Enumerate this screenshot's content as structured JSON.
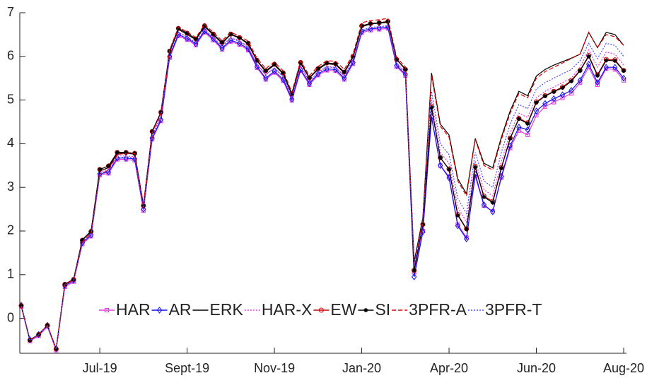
{
  "chart_data": {
    "type": "line",
    "categories": [
      null,
      null,
      null,
      null,
      null,
      null,
      null,
      null,
      null,
      "Jul-19",
      null,
      null,
      null,
      null,
      null,
      null,
      null,
      null,
      null,
      "Sept-19",
      null,
      null,
      null,
      null,
      null,
      null,
      null,
      null,
      null,
      "Nov-19",
      null,
      null,
      null,
      null,
      null,
      null,
      null,
      null,
      null,
      "Jan-20",
      null,
      null,
      null,
      null,
      null,
      null,
      null,
      null,
      null,
      "Apr-20",
      null,
      null,
      null,
      null,
      null,
      null,
      null,
      null,
      null,
      "Jun-20",
      null,
      null,
      null,
      null,
      null,
      null,
      null,
      null,
      null,
      "Aug-20"
    ],
    "ylim": [
      -0.8,
      7
    ],
    "yticks": [
      0,
      1,
      2,
      3,
      4,
      5,
      6,
      7
    ],
    "legend": "bottom",
    "series": [
      {
        "name": "HAR",
        "color": "#e03ce0",
        "marker": "square",
        "dash": "solid",
        "values": [
          0.27,
          -0.52,
          -0.4,
          -0.19,
          -0.73,
          0.72,
          0.84,
          1.7,
          1.88,
          3.28,
          3.32,
          3.64,
          3.64,
          3.62,
          2.47,
          4.1,
          4.52,
          5.97,
          6.47,
          6.38,
          6.26,
          6.55,
          6.37,
          6.16,
          6.34,
          6.27,
          6.14,
          5.74,
          5.47,
          5.63,
          5.44,
          4.99,
          5.67,
          5.35,
          5.57,
          5.68,
          5.67,
          5.47,
          5.83,
          6.54,
          6.6,
          6.62,
          6.64,
          5.76,
          5.56,
          1.05,
          2.0,
          4.6,
          3.5,
          3.25,
          2.15,
          1.85,
          3.25,
          2.58,
          2.45,
          3.22,
          3.9,
          4.3,
          4.2,
          4.65,
          4.85,
          4.95,
          5.05,
          5.15,
          5.4,
          5.75,
          5.35,
          5.72,
          5.7,
          5.45
        ]
      },
      {
        "name": "AR",
        "color": "#1010ee",
        "marker": "diamond",
        "dash": "solid",
        "values": [
          0.3,
          -0.49,
          -0.37,
          -0.16,
          -0.7,
          0.75,
          0.87,
          1.73,
          1.91,
          3.31,
          3.35,
          3.67,
          3.67,
          3.65,
          2.5,
          4.13,
          4.55,
          6.0,
          6.5,
          6.41,
          6.29,
          6.58,
          6.4,
          6.19,
          6.37,
          6.3,
          6.17,
          5.77,
          5.5,
          5.66,
          5.47,
          5.02,
          5.7,
          5.38,
          5.6,
          5.71,
          5.7,
          5.5,
          5.86,
          6.57,
          6.63,
          6.65,
          6.67,
          5.79,
          5.59,
          0.95,
          1.98,
          4.62,
          3.5,
          3.22,
          2.12,
          1.82,
          3.3,
          2.6,
          2.44,
          3.25,
          3.95,
          4.38,
          4.32,
          4.75,
          4.92,
          5.03,
          5.12,
          5.22,
          5.45,
          5.82,
          5.4,
          5.75,
          5.75,
          5.5
        ]
      },
      {
        "name": "ERK",
        "color": "#000000",
        "marker": "none",
        "dash": "solid",
        "values": [
          0.29,
          -0.5,
          -0.37,
          -0.16,
          -0.7,
          0.78,
          0.9,
          1.8,
          2.0,
          3.38,
          3.45,
          3.78,
          3.78,
          3.76,
          2.58,
          4.27,
          4.72,
          6.1,
          6.62,
          6.5,
          6.38,
          6.68,
          6.49,
          6.3,
          6.5,
          6.42,
          6.28,
          5.9,
          5.65,
          5.8,
          5.6,
          5.12,
          5.84,
          5.5,
          5.7,
          5.83,
          5.81,
          5.62,
          5.98,
          6.68,
          6.74,
          6.76,
          6.78,
          5.92,
          5.72,
          1.3,
          2.3,
          5.62,
          4.45,
          4.2,
          3.2,
          2.85,
          4.12,
          3.55,
          3.45,
          4.15,
          4.75,
          5.2,
          5.1,
          5.55,
          5.7,
          5.8,
          5.88,
          5.96,
          6.05,
          6.55,
          6.2,
          6.55,
          6.5,
          6.25
        ]
      },
      {
        "name": "HAR-X",
        "color": "#e03ce0",
        "marker": "none",
        "dash": "dotted",
        "values": [
          0.27,
          -0.52,
          -0.4,
          -0.19,
          -0.72,
          0.74,
          0.86,
          1.75,
          1.95,
          3.35,
          3.42,
          3.72,
          3.72,
          3.7,
          2.52,
          4.2,
          4.65,
          6.05,
          6.55,
          6.45,
          6.32,
          6.62,
          6.44,
          6.24,
          6.44,
          6.36,
          6.22,
          5.83,
          5.58,
          5.74,
          5.54,
          5.06,
          5.78,
          5.44,
          5.64,
          5.77,
          5.75,
          5.56,
          5.92,
          6.6,
          6.66,
          6.68,
          6.7,
          5.85,
          5.64,
          1.15,
          2.1,
          5.0,
          3.8,
          3.55,
          2.55,
          2.2,
          3.6,
          2.95,
          2.8,
          3.6,
          4.25,
          4.7,
          4.6,
          5.05,
          5.2,
          5.3,
          5.4,
          5.5,
          5.75,
          6.15,
          5.75,
          6.1,
          6.05,
          5.8
        ]
      },
      {
        "name": "EW",
        "color": "#cc0000",
        "marker": "circle",
        "dash": "solid",
        "values": [
          0.29,
          -0.5,
          -0.37,
          -0.16,
          -0.7,
          0.78,
          0.89,
          1.79,
          1.99,
          3.41,
          3.49,
          3.8,
          3.8,
          3.78,
          2.58,
          4.28,
          4.72,
          6.12,
          6.64,
          6.53,
          6.4,
          6.7,
          6.51,
          6.32,
          6.51,
          6.43,
          6.3,
          5.91,
          5.67,
          5.82,
          5.62,
          5.14,
          5.86,
          5.51,
          5.72,
          5.85,
          5.83,
          5.64,
          6.0,
          6.7,
          6.75,
          6.77,
          6.8,
          5.93,
          5.7,
          1.1,
          2.15,
          4.85,
          3.68,
          3.42,
          2.38,
          2.05,
          3.48,
          2.8,
          2.68,
          3.46,
          4.13,
          4.58,
          4.48,
          4.96,
          5.1,
          5.2,
          5.3,
          5.45,
          5.68,
          6.02,
          5.58,
          5.93,
          5.92,
          5.68
        ]
      },
      {
        "name": "SI",
        "color": "#000000",
        "marker": "star",
        "dash": "solid",
        "values": [
          0.29,
          -0.5,
          -0.37,
          -0.16,
          -0.7,
          0.78,
          0.89,
          1.79,
          1.99,
          3.41,
          3.49,
          3.8,
          3.8,
          3.78,
          2.58,
          4.28,
          4.72,
          6.12,
          6.64,
          6.53,
          6.4,
          6.7,
          6.51,
          6.32,
          6.51,
          6.43,
          6.3,
          5.91,
          5.67,
          5.82,
          5.62,
          5.14,
          5.86,
          5.51,
          5.72,
          5.85,
          5.83,
          5.64,
          6.0,
          6.7,
          6.75,
          6.77,
          6.8,
          5.93,
          5.7,
          1.1,
          2.15,
          4.83,
          3.68,
          3.41,
          2.36,
          2.04,
          3.46,
          2.78,
          2.65,
          3.44,
          4.12,
          4.57,
          4.46,
          4.94,
          5.09,
          5.19,
          5.28,
          5.43,
          5.67,
          6.0,
          5.56,
          5.91,
          5.9,
          5.67
        ]
      },
      {
        "name": "3PFR-A",
        "color": "#e00000",
        "marker": "none",
        "dash": "dashed",
        "values": [
          0.29,
          -0.5,
          -0.37,
          -0.16,
          -0.7,
          0.78,
          0.88,
          1.75,
          1.95,
          3.3,
          3.4,
          3.75,
          3.78,
          3.78,
          2.6,
          4.25,
          4.7,
          6.15,
          6.67,
          6.56,
          6.43,
          6.73,
          6.55,
          6.36,
          6.55,
          6.47,
          6.35,
          5.96,
          5.72,
          5.87,
          5.67,
          5.18,
          5.9,
          5.56,
          5.77,
          5.9,
          5.89,
          5.7,
          6.05,
          6.77,
          6.82,
          6.84,
          6.87,
          5.97,
          5.76,
          1.25,
          2.25,
          5.55,
          4.4,
          4.15,
          3.15,
          2.8,
          4.1,
          3.5,
          3.4,
          4.1,
          4.7,
          5.15,
          5.05,
          5.5,
          5.65,
          5.75,
          5.85,
          5.95,
          6.05,
          6.55,
          6.2,
          6.5,
          6.45,
          6.25
        ]
      },
      {
        "name": "3PFR-T",
        "color": "#4a4aff",
        "marker": "none",
        "dash": "dotted",
        "values": [
          0.28,
          -0.51,
          -0.38,
          -0.17,
          -0.71,
          0.75,
          0.86,
          1.74,
          1.92,
          3.3,
          3.38,
          3.68,
          3.7,
          3.68,
          2.5,
          4.18,
          4.62,
          6.03,
          6.55,
          6.44,
          6.31,
          6.61,
          6.42,
          6.23,
          6.42,
          6.34,
          6.2,
          5.82,
          5.58,
          5.73,
          5.53,
          5.05,
          5.77,
          5.42,
          5.63,
          5.76,
          5.74,
          5.55,
          5.91,
          6.6,
          6.66,
          6.68,
          6.7,
          5.84,
          5.62,
          1.2,
          2.2,
          5.2,
          4.0,
          3.75,
          2.75,
          2.4,
          3.8,
          3.15,
          3.0,
          3.8,
          4.45,
          4.9,
          4.8,
          5.25,
          5.4,
          5.5,
          5.6,
          5.7,
          5.9,
          6.3,
          5.95,
          6.3,
          6.25,
          6.0
        ]
      }
    ]
  }
}
